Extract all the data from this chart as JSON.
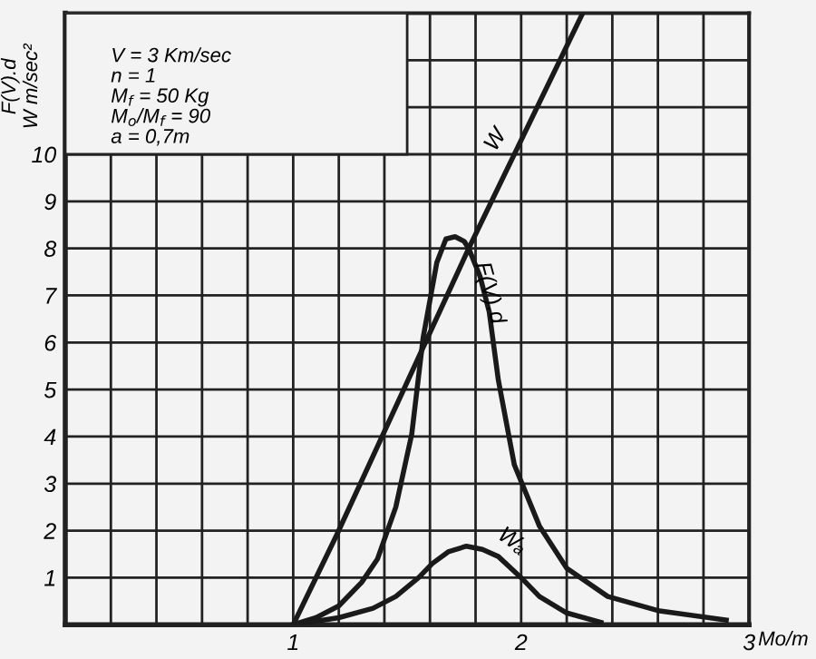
{
  "chart_data": {
    "type": "line",
    "xlabel": "Mo/m",
    "ylabel": "F(V).d\nW m/sec²",
    "annotations": [
      "V = 3 Km/sec",
      "n = 1",
      "M$_{f}$ = 50 Kg",
      "M$_{o}$/M$_{f}$ = 90",
      "a = 0,7m"
    ],
    "series": [
      {
        "name": "W",
        "color": "#1a1a1a",
        "x": [
          1.0,
          1.19,
          1.77,
          2.27
        ],
        "values": [
          0.0,
          1.9,
          8.0,
          13.0
        ]
      },
      {
        "name": "F(V).d",
        "color": "#1a1a1a",
        "x": [
          1.0,
          1.1,
          1.2,
          1.3,
          1.37,
          1.45,
          1.52,
          1.57,
          1.63,
          1.67,
          1.71,
          1.75,
          1.77,
          1.82,
          1.86,
          1.9,
          1.97,
          2.08,
          2.2,
          2.38,
          2.6,
          2.9
        ],
        "values": [
          0.0,
          0.15,
          0.4,
          0.9,
          1.4,
          2.5,
          4.05,
          6.1,
          7.7,
          8.2,
          8.25,
          8.15,
          8.0,
          7.4,
          6.65,
          5.2,
          3.4,
          2.1,
          1.2,
          0.6,
          0.3,
          0.1
        ]
      },
      {
        "name": "Wₐ",
        "color": "#1a1a1a",
        "x": [
          1.0,
          1.2,
          1.35,
          1.45,
          1.55,
          1.61,
          1.68,
          1.76,
          1.83,
          1.9,
          2.0,
          2.08,
          2.2,
          2.35
        ],
        "values": [
          0.0,
          0.15,
          0.35,
          0.6,
          1.0,
          1.3,
          1.55,
          1.67,
          1.6,
          1.45,
          1.0,
          0.6,
          0.25,
          0.05
        ]
      }
    ],
    "xlim": [
      0,
      3
    ],
    "ylim": [
      0,
      13
    ],
    "xticks": [
      {
        "value": 0.2,
        "label": null
      },
      {
        "value": 0.4,
        "label": null
      },
      {
        "value": 0.6,
        "label": null
      },
      {
        "value": 0.8,
        "label": null
      },
      1,
      {
        "value": 1.2,
        "label": null
      },
      {
        "value": 1.4,
        "label": null
      },
      {
        "value": 1.6,
        "label": null
      },
      {
        "value": 1.8,
        "label": null
      },
      2,
      {
        "value": 2.2,
        "label": null
      },
      {
        "value": 2.4,
        "label": null
      },
      {
        "value": 2.6,
        "label": null
      },
      {
        "value": 2.8,
        "label": null
      },
      3
    ],
    "yticks": [
      1,
      2,
      3,
      4,
      5,
      6,
      7,
      8,
      9,
      10,
      {
        "value": 11,
        "label": null
      },
      {
        "value": 12,
        "label": null
      }
    ],
    "grid": true,
    "legend": false,
    "marker": "none",
    "line_style": "solid"
  }
}
